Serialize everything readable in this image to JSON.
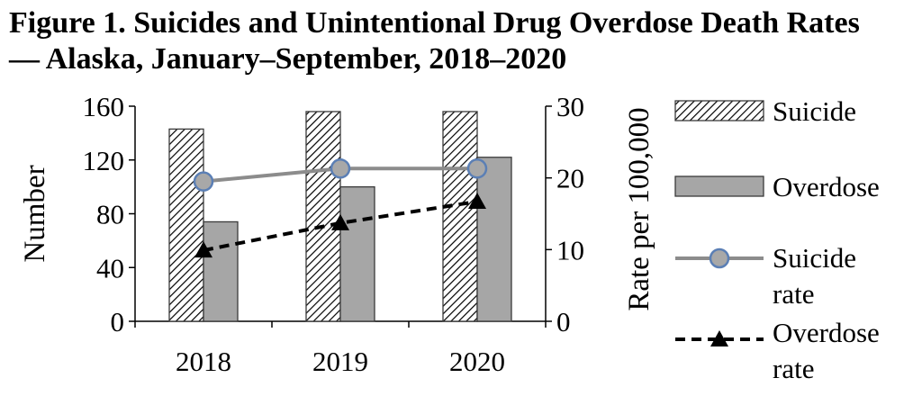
{
  "title_line1": "Figure 1. Suicides and Unintentional Drug Overdose Death Rates",
  "title_line2": "— Alaska, January–September, 2018–2020",
  "chart_data": {
    "type": "bar",
    "title": "Figure 1. Suicides and Unintentional Drug Overdose Death Rates — Alaska, January–September, 2018–2020",
    "categories": [
      "2018",
      "2019",
      "2020"
    ],
    "ylabel": "Number",
    "y2label": "Rate per 100,000",
    "ylim": [
      0,
      160
    ],
    "y2lim": [
      0,
      30
    ],
    "yticks": [
      "0",
      "40",
      "80",
      "120",
      "160"
    ],
    "y2ticks": [
      "0",
      "10",
      "20",
      "30"
    ],
    "bar_series": [
      {
        "name": "Suicide",
        "values": [
          143,
          156,
          156
        ],
        "pattern": "diagonal-hatch",
        "color": "#000000"
      },
      {
        "name": "Overdose",
        "values": [
          74,
          100,
          122
        ],
        "color": "#a6a6a6"
      }
    ],
    "line_series": [
      {
        "name": "Suicide rate",
        "values": [
          19.5,
          21.3,
          21.3
        ],
        "axis": "right",
        "color": "#8c8c8c",
        "marker": "circle",
        "marker_color": "#a8a8a8",
        "marker_edge": "#5b7fb5"
      },
      {
        "name": "Overdose rate",
        "values": [
          9.9,
          13.7,
          16.7
        ],
        "axis": "right",
        "color": "#000000",
        "marker": "triangle",
        "dashed": true
      }
    ],
    "legend": [
      {
        "label": "Suicide",
        "type": "hatch-bar"
      },
      {
        "label": "Overdose",
        "type": "gray-bar"
      },
      {
        "label_lines": [
          "Suicide",
          "rate"
        ],
        "type": "circle-line"
      },
      {
        "label_lines": [
          "Overdose",
          "rate"
        ],
        "type": "triangle-dash"
      }
    ],
    "legend_position": "right",
    "grid": false
  }
}
